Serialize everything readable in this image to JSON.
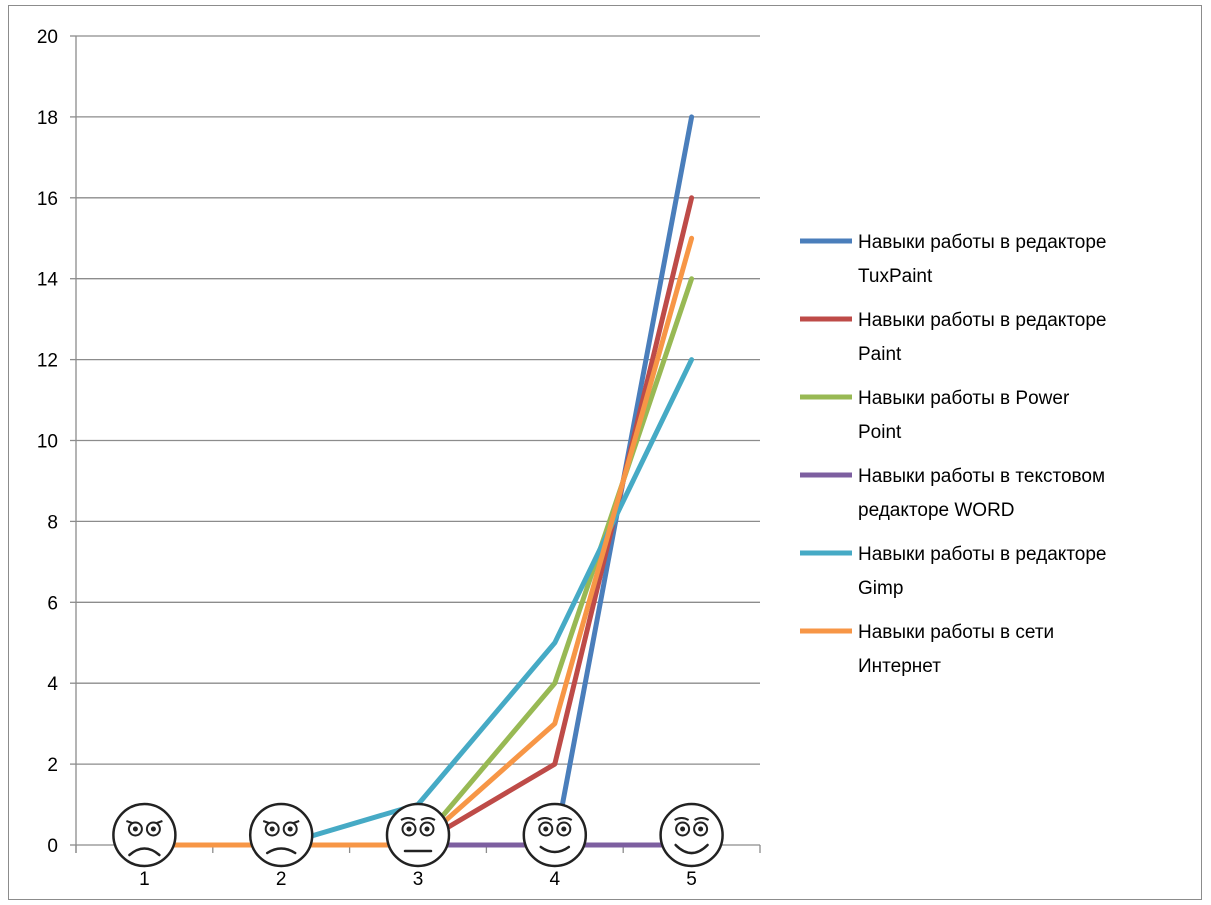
{
  "chart_data": {
    "type": "line",
    "categories": [
      "1",
      "2",
      "3",
      "4",
      "5"
    ],
    "ylim": [
      0,
      20
    ],
    "yticks": [
      0,
      2,
      4,
      6,
      8,
      10,
      12,
      14,
      16,
      18,
      20
    ],
    "grid": true,
    "legend_position": "right",
    "series": [
      {
        "name": "Навыки работы в редакторе TuxPaint",
        "legend_lines": [
          "Навыки работы в редакторе",
          "TuxPaint"
        ],
        "color": "#4a7ebb",
        "values": [
          0,
          0,
          0,
          0,
          18
        ]
      },
      {
        "name": "Навыки работы в редакторе Paint",
        "legend_lines": [
          "Навыки работы в редакторе",
          "Paint"
        ],
        "color": "#be4b48",
        "values": [
          0,
          0,
          0,
          2,
          16
        ]
      },
      {
        "name": "Навыки работы в Power Point",
        "legend_lines": [
          "Навыки работы в Power",
          "Point"
        ],
        "color": "#98b954",
        "values": [
          0,
          0,
          0,
          4,
          14
        ]
      },
      {
        "name": "Навыки работы в текстовом редакторе WORD",
        "legend_lines": [
          "Навыки работы в текстовом",
          "редакторе WORD"
        ],
        "color": "#7d5fa0",
        "values": [
          0,
          0,
          0,
          0,
          0
        ]
      },
      {
        "name": "Навыки работы в редакторе Gimp",
        "legend_lines": [
          "Навыки работы в редакторе",
          "Gimp"
        ],
        "color": "#46aac5",
        "values": [
          0,
          0,
          1,
          5,
          12
        ]
      },
      {
        "name": "Навыки работы в сети Интернет",
        "legend_lines": [
          "Навыки работы в сети",
          "Интернет"
        ],
        "color": "#f79646",
        "values": [
          0,
          0,
          0,
          3,
          15
        ]
      }
    ]
  },
  "icons": [
    "face-very-sad-icon",
    "face-sad-icon",
    "face-neutral-icon",
    "face-slight-smile-icon",
    "face-happy-icon"
  ]
}
